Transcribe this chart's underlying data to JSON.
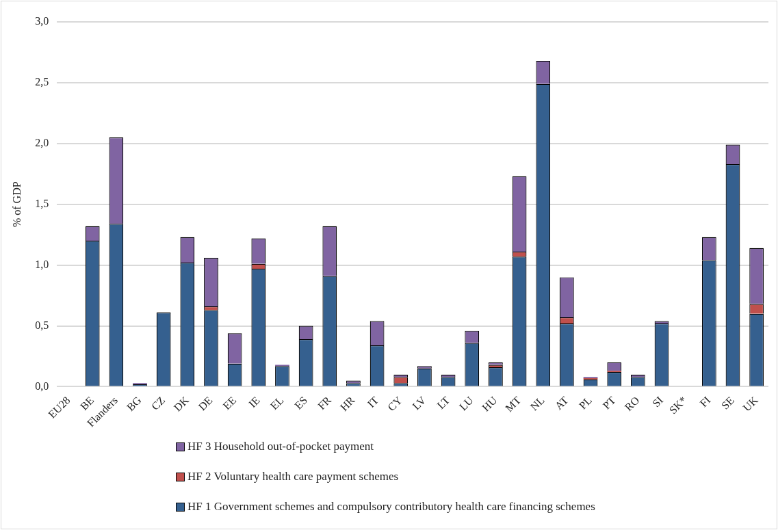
{
  "chart_data": {
    "type": "bar",
    "stacked": true,
    "ylabel": "% of GDP",
    "categories": [
      "EU28",
      "BE",
      "Flanders",
      "BG",
      "CZ",
      "DK",
      "DE",
      "EE",
      "IE",
      "EL",
      "ES",
      "FR",
      "HR",
      "IT",
      "CY",
      "LV",
      "LT",
      "LU",
      "HU",
      "MT",
      "NL",
      "AT",
      "PL",
      "PT",
      "RO",
      "SI",
      "SK*",
      "FI",
      "SE",
      "UK"
    ],
    "series": [
      {
        "name": "HF 1 Government schemes and compulsory contributory health care financing schemes",
        "color": "#35608f",
        "values": [
          null,
          1.2,
          1.34,
          0.02,
          0.61,
          1.02,
          0.63,
          0.19,
          0.97,
          0.17,
          0.39,
          0.91,
          0.03,
          0.34,
          0.03,
          0.15,
          0.08,
          0.36,
          0.16,
          1.07,
          2.49,
          0.52,
          0.06,
          0.12,
          0.08,
          0.52,
          null,
          1.04,
          1.83,
          0.6
        ]
      },
      {
        "name": "HF 2 Voluntary health care payment schemes",
        "color": "#c0504d",
        "values": [
          null,
          0,
          0,
          0,
          0,
          0,
          0.03,
          0,
          0.04,
          0,
          0,
          0,
          0,
          0,
          0.05,
          0,
          0,
          0,
          0.02,
          0.04,
          0,
          0.05,
          0.01,
          0.01,
          0,
          0,
          null,
          0,
          0,
          0.08
        ]
      },
      {
        "name": "HF 3 Household out-of-pocket payment",
        "color": "#8064a2",
        "values": [
          null,
          0.12,
          0.71,
          0.01,
          0,
          0.21,
          0.4,
          0.25,
          0.21,
          0.01,
          0.11,
          0.41,
          0.02,
          0.2,
          0.02,
          0.02,
          0.02,
          0.1,
          0.02,
          0.62,
          0.19,
          0.33,
          0.01,
          0.07,
          0.02,
          0.02,
          null,
          0.19,
          0.16,
          0.46
        ]
      }
    ],
    "ylim": [
      0,
      3
    ],
    "yticks": [
      {
        "value": 0,
        "label": "0,0"
      },
      {
        "value": 0.5,
        "label": "0,5"
      },
      {
        "value": 1,
        "label": "1,0"
      },
      {
        "value": 1.5,
        "label": "1,5"
      },
      {
        "value": 2,
        "label": "2,0"
      },
      {
        "value": 2.5,
        "label": "2,5"
      },
      {
        "value": 3,
        "label": "3,0"
      }
    ],
    "grid": "y",
    "legend": "bottom"
  }
}
